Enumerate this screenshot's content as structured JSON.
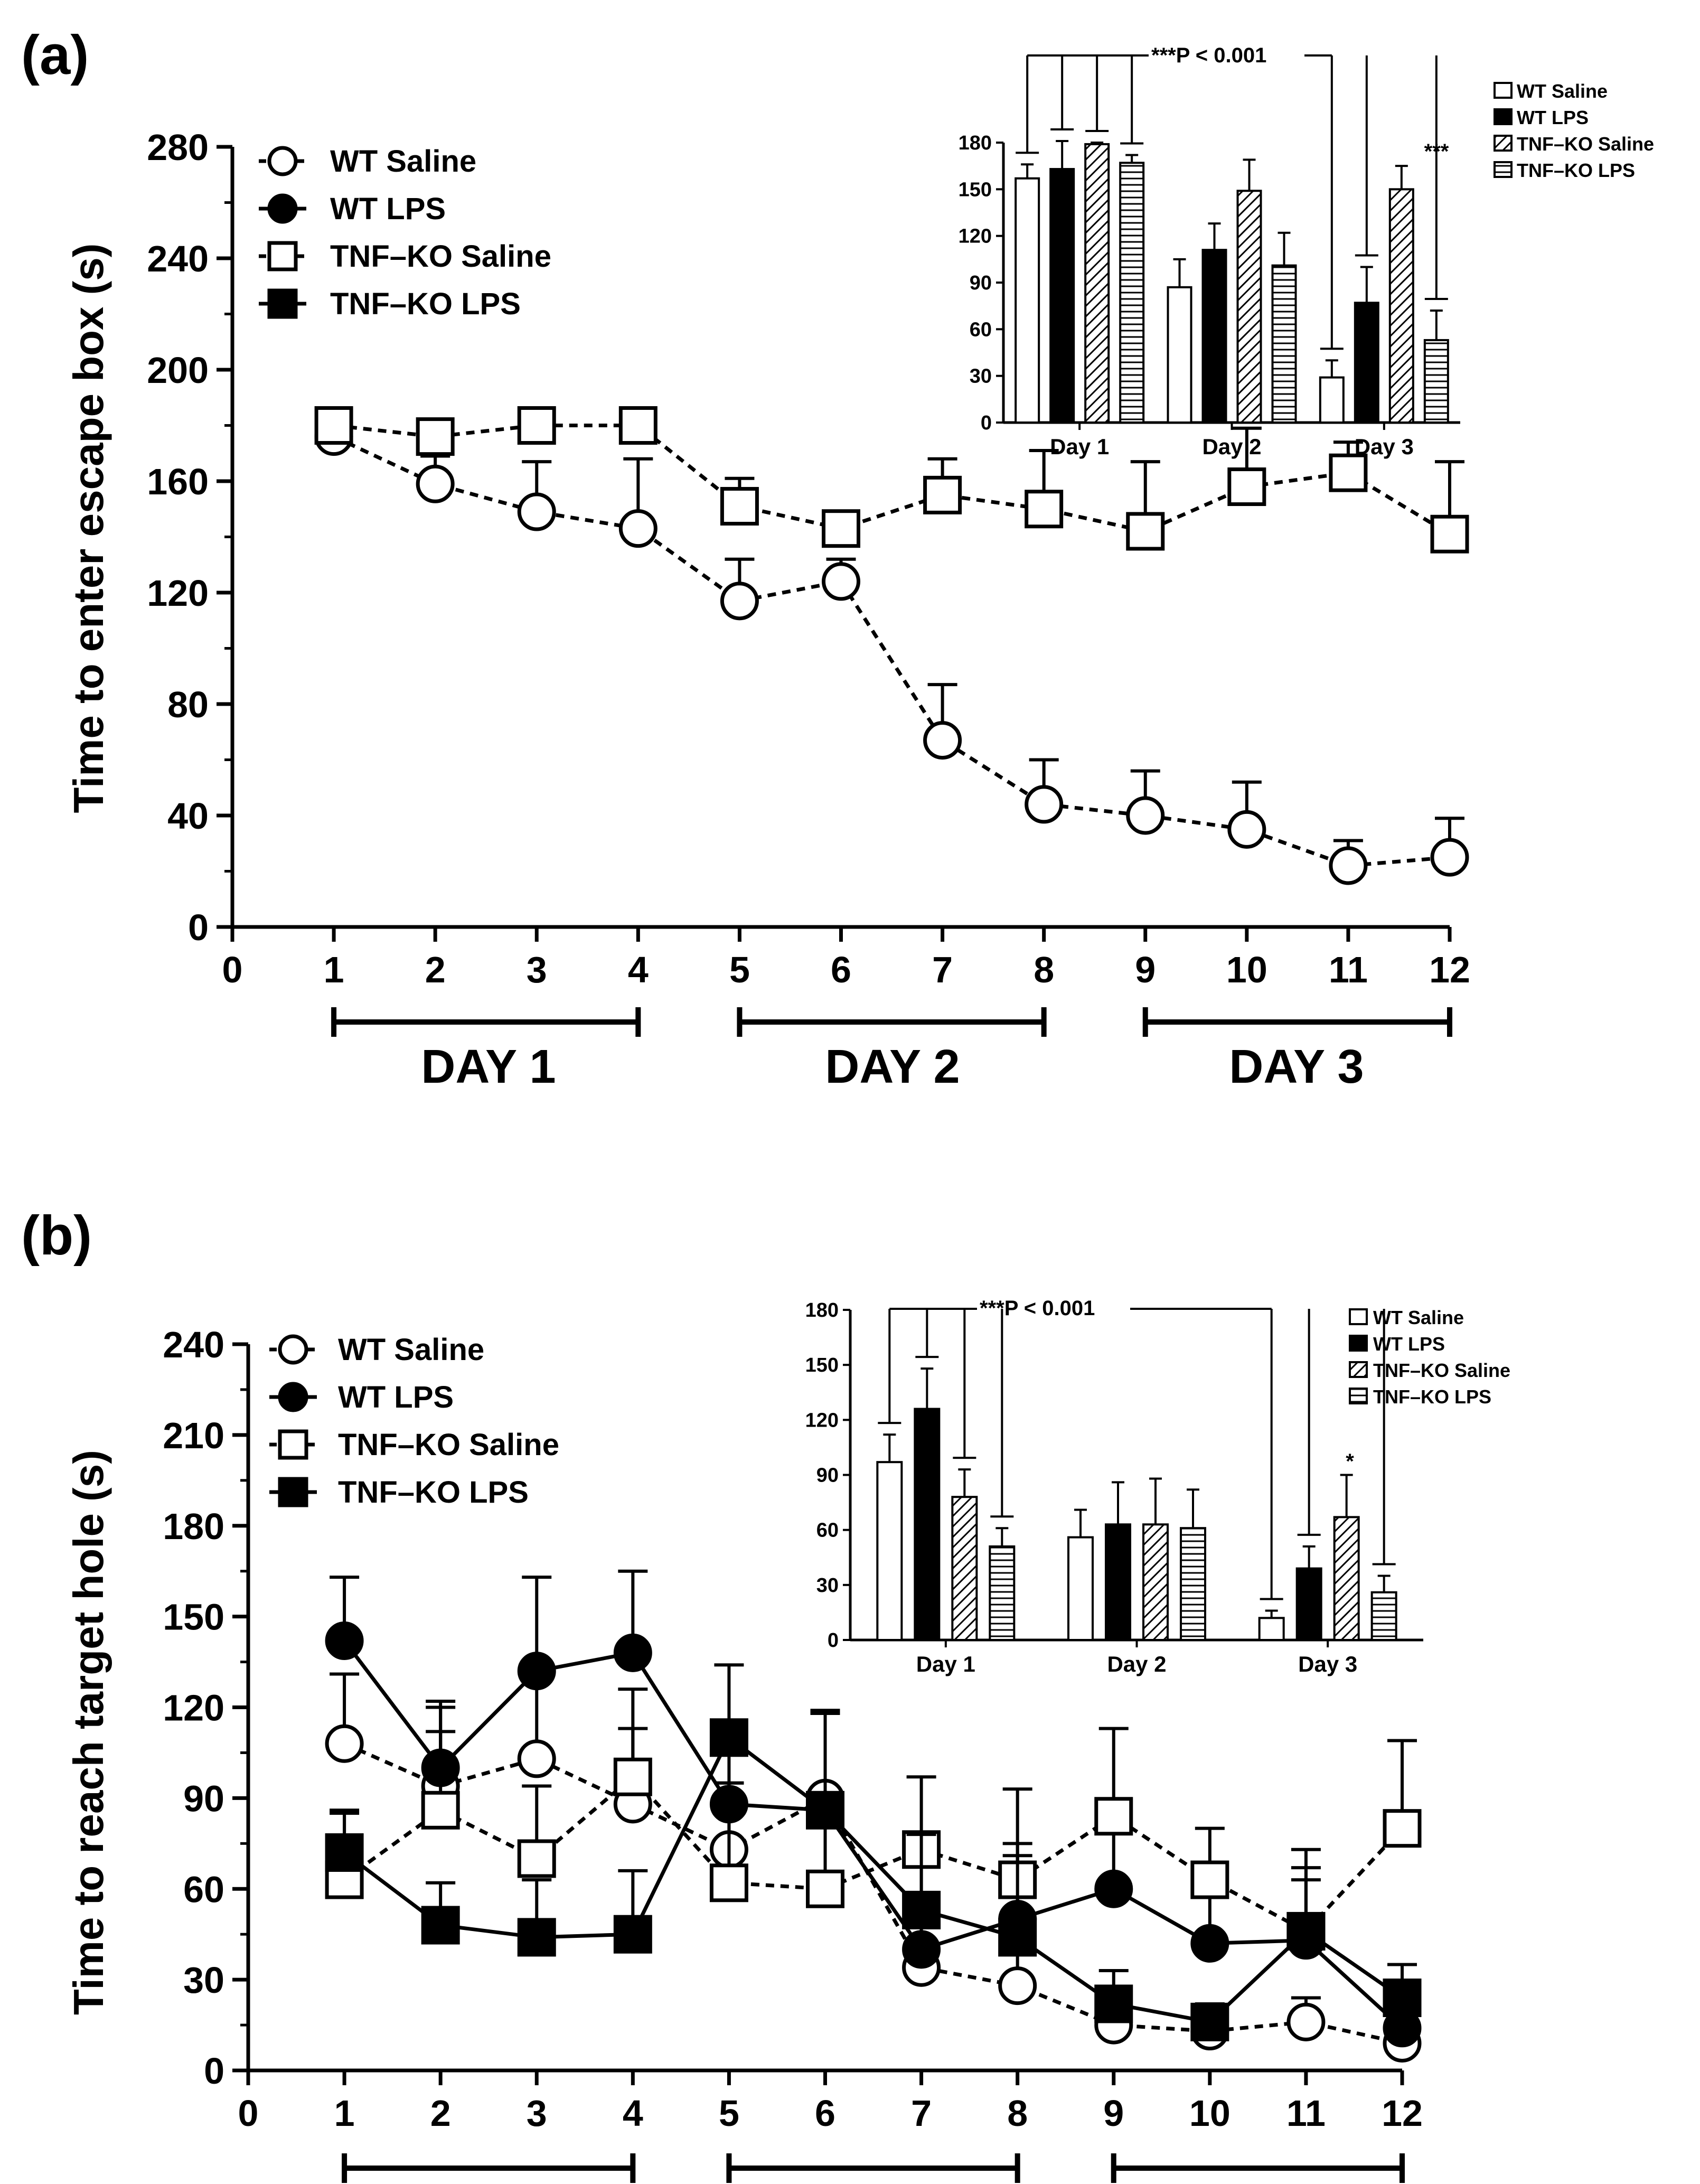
{
  "panels": [
    {
      "id": "a",
      "label": "(a)",
      "ylabel": "Time to enter escape box (s)",
      "legend": [
        "WT Saline",
        "WT LPS",
        "TNF–KO Saline",
        "TNF–KO LPS"
      ],
      "days": [
        "DAY 1",
        "DAY 2",
        "DAY 3"
      ],
      "inset": {
        "significance": "***P < 0.001",
        "categories": [
          "Day 1",
          "Day 2",
          "Day 3"
        ],
        "legend": [
          "WT Saline",
          "WT LPS",
          "TNF–KO Saline",
          "TNF–KO LPS"
        ],
        "star_label": "***"
      }
    },
    {
      "id": "b",
      "label": "(b)",
      "ylabel": "Time to reach target hole (s)",
      "legend": [
        "WT Saline",
        "WT LPS",
        "TNF–KO Saline",
        "TNF–KO LPS"
      ],
      "inset": {
        "significance": "***P < 0.001",
        "categories": [
          "Day 1",
          "Day 2",
          "Day 3"
        ],
        "legend": [
          "WT Saline",
          "WT LPS",
          "TNF–KO Saline",
          "TNF–KO LPS"
        ],
        "star_label": "*"
      }
    }
  ],
  "chart_data": [
    {
      "type": "line",
      "panel": "a",
      "x": [
        1,
        2,
        3,
        4,
        5,
        6,
        7,
        8,
        9,
        10,
        11,
        12
      ],
      "xlim": [
        0,
        12
      ],
      "xticks": [
        0,
        1,
        2,
        3,
        4,
        5,
        6,
        7,
        8,
        9,
        10,
        11,
        12
      ],
      "ylabel": "Time to enter escape box (s)",
      "ylim": [
        0,
        280
      ],
      "yticks": [
        0,
        40,
        80,
        120,
        160,
        200,
        240,
        280
      ],
      "series": [
        {
          "name": "WT Saline",
          "values": [
            176,
            159,
            149,
            143,
            117,
            124,
            67,
            44,
            40,
            35,
            22,
            25
          ],
          "errors": [
            2,
            10,
            18,
            25,
            15,
            8,
            20,
            16,
            16,
            17,
            9,
            14
          ]
        },
        {
          "name": "TNF–KO Saline",
          "values": [
            180,
            176,
            180,
            180,
            151,
            143,
            155,
            150,
            142,
            158,
            163,
            141
          ],
          "errors": [
            2,
            2,
            2,
            2,
            10,
            2,
            13,
            21,
            25,
            21,
            11,
            26
          ]
        }
      ]
    },
    {
      "type": "bar",
      "panel": "a-inset",
      "categories": [
        "Day 1",
        "Day 2",
        "Day 3"
      ],
      "ylim": [
        0,
        180
      ],
      "yticks": [
        0,
        30,
        60,
        90,
        120,
        150,
        180
      ],
      "series": [
        {
          "name": "WT Saline",
          "values": [
            157,
            87,
            29
          ],
          "errors": [
            9,
            18,
            11
          ]
        },
        {
          "name": "WT LPS",
          "values": [
            163,
            111,
            77
          ],
          "errors": [
            18,
            17,
            23
          ]
        },
        {
          "name": "TNF–KO Saline",
          "values": [
            179,
            149,
            150
          ],
          "errors": [
            1,
            20,
            15
          ]
        },
        {
          "name": "TNF–KO LPS",
          "values": [
            167,
            101,
            53
          ],
          "errors": [
            5,
            21,
            19
          ]
        }
      ]
    },
    {
      "type": "line",
      "panel": "b",
      "x": [
        1,
        2,
        3,
        4,
        5,
        6,
        7,
        8,
        9,
        10,
        11,
        12
      ],
      "xlim": [
        0,
        12
      ],
      "xticks": [
        0,
        1,
        2,
        3,
        4,
        5,
        6,
        7,
        8,
        9,
        10,
        11,
        12
      ],
      "ylabel": "Time to reach target hole (s)",
      "ylim": [
        0,
        240
      ],
      "yticks": [
        0,
        30,
        60,
        90,
        120,
        150,
        180,
        210,
        240
      ],
      "series": [
        {
          "name": "WT Saline",
          "values": [
            108,
            94,
            103,
            88,
            73,
            90,
            34,
            28,
            15,
            13,
            16,
            9
          ],
          "errors": [
            23,
            28,
            28,
            25,
            22,
            28,
            18,
            12,
            10,
            8,
            8,
            6
          ]
        },
        {
          "name": "WT LPS",
          "values": [
            142,
            100,
            132,
            138,
            88,
            86,
            40,
            50,
            60,
            42,
            43,
            14
          ],
          "errors": [
            21,
            20,
            31,
            27,
            25,
            32,
            33,
            25,
            20,
            18,
            20,
            8
          ]
        },
        {
          "name": "TNF–KO Saline",
          "values": [
            63,
            86,
            70,
            97,
            62,
            60,
            73,
            63,
            84,
            63,
            46,
            80
          ],
          "errors": [
            22,
            26,
            24,
            29,
            33,
            58,
            24,
            30,
            29,
            17,
            27,
            29
          ]
        },
        {
          "name": "TNF–KO LPS",
          "values": [
            72,
            48,
            44,
            45,
            110,
            86,
            53,
            44,
            22,
            16,
            46,
            24
          ],
          "errors": [
            14,
            14,
            19,
            21,
            24,
            33,
            25,
            27,
            11,
            6,
            21,
            11
          ]
        }
      ]
    },
    {
      "type": "bar",
      "panel": "b-inset",
      "categories": [
        "Day 1",
        "Day 2",
        "Day 3"
      ],
      "ylim": [
        0,
        180
      ],
      "yticks": [
        0,
        30,
        60,
        90,
        120,
        150,
        180
      ],
      "series": [
        {
          "name": "WT Saline",
          "values": [
            97,
            56,
            12
          ],
          "errors": [
            15,
            15,
            4
          ]
        },
        {
          "name": "WT LPS",
          "values": [
            126,
            63,
            39
          ],
          "errors": [
            22,
            23,
            12
          ]
        },
        {
          "name": "TNF–KO Saline",
          "values": [
            78,
            63,
            67
          ],
          "errors": [
            15,
            25,
            23
          ]
        },
        {
          "name": "TNF–KO LPS",
          "values": [
            51,
            61,
            26
          ],
          "errors": [
            10,
            21,
            9
          ]
        }
      ]
    }
  ]
}
